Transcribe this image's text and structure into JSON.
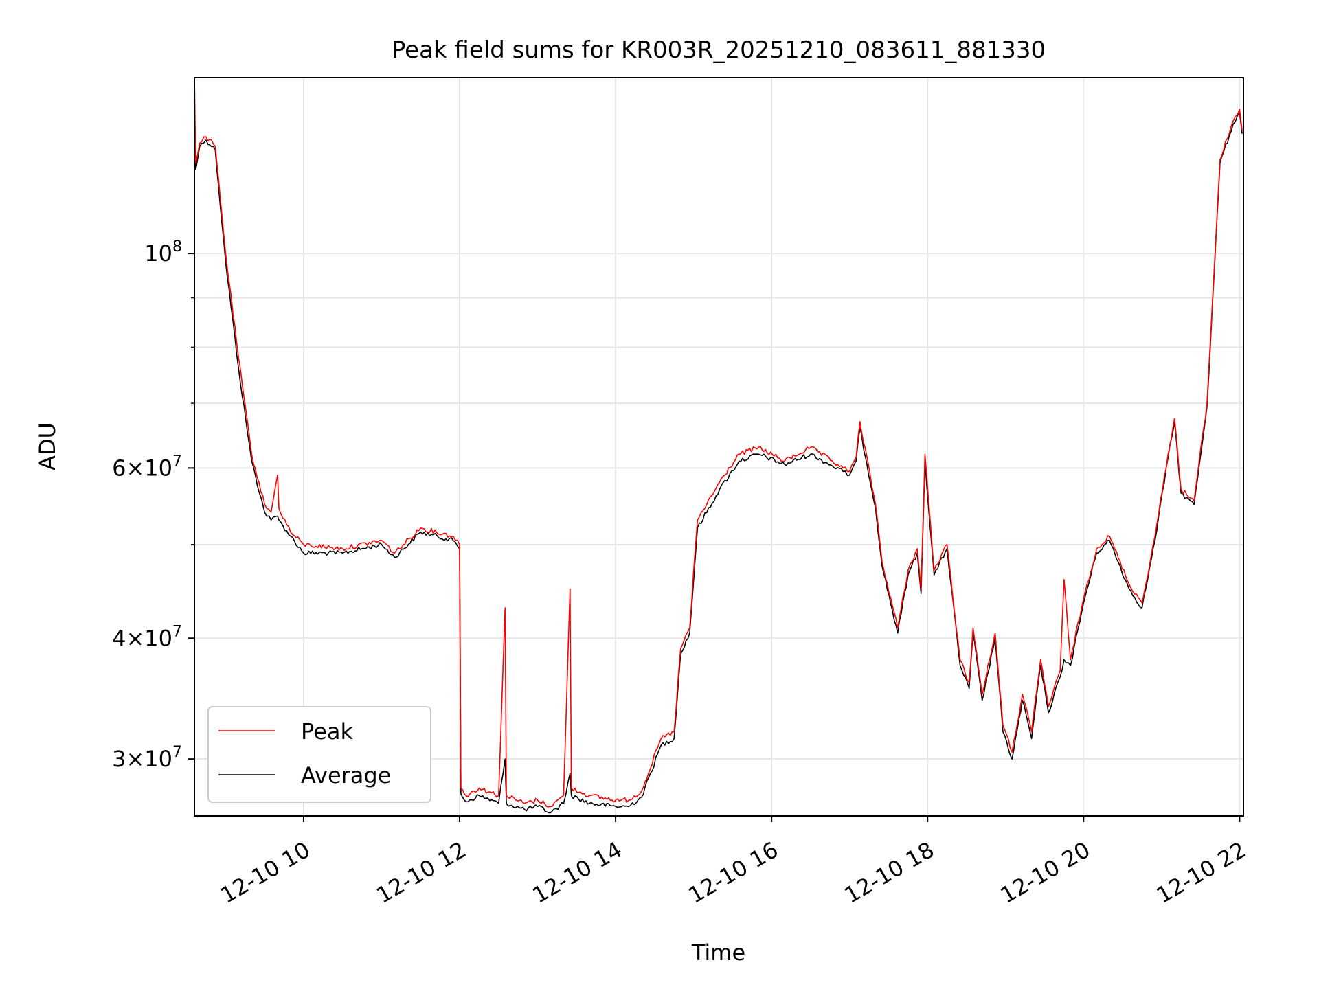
{
  "chart_data": {
    "type": "line",
    "title": "Peak field sums for KR003R_20251210_083611_881330",
    "xlabel": "Time",
    "ylabel": "ADU",
    "x_axis": {
      "type": "time",
      "start": "2025-12-10 08:36",
      "end": "2025-12-10 22:03"
    },
    "y_axis": {
      "scale": "log",
      "ylim": [
        26200000,
        152000000
      ]
    },
    "grid": true,
    "legend": {
      "position": "lower-left",
      "entries": [
        "Peak",
        "Average"
      ]
    },
    "x_ticks": [
      {
        "t": "10:00",
        "label": "12-10 10"
      },
      {
        "t": "12:00",
        "label": "12-10 12"
      },
      {
        "t": "14:00",
        "label": "12-10 14"
      },
      {
        "t": "16:00",
        "label": "12-10 16"
      },
      {
        "t": "18:00",
        "label": "12-10 18"
      },
      {
        "t": "20:00",
        "label": "12-10 20"
      },
      {
        "t": "22:00",
        "label": "12-10 22"
      }
    ],
    "y_ticks": [
      {
        "value": 30000000,
        "mant": "3",
        "exp": "7"
      },
      {
        "value": 40000000,
        "mant": "4",
        "exp": "7"
      },
      {
        "value": 60000000,
        "mant": "6",
        "exp": "7"
      },
      {
        "value": 100000000,
        "mant": "",
        "exp": "8"
      }
    ],
    "y_minor_ticks": [
      50000000,
      70000000,
      80000000,
      90000000
    ],
    "series": [
      {
        "name": "Peak",
        "color": "#ff0000",
        "points": [
          [
            "08:36",
            152000000
          ],
          [
            "08:37",
            124000000
          ],
          [
            "08:40",
            130000000
          ],
          [
            "08:45",
            132000000
          ],
          [
            "08:52",
            129000000
          ],
          [
            "09:00",
            100000000
          ],
          [
            "09:10",
            78000000
          ],
          [
            "09:20",
            62000000
          ],
          [
            "09:30",
            55000000
          ],
          [
            "09:35",
            54000000
          ],
          [
            "09:40",
            59000000
          ],
          [
            "09:41",
            54500000
          ],
          [
            "09:50",
            51500000
          ],
          [
            "10:00",
            50000000
          ],
          [
            "10:30",
            49500000
          ],
          [
            "11:00",
            50500000
          ],
          [
            "11:10",
            49000000
          ],
          [
            "11:30",
            52000000
          ],
          [
            "11:55",
            51000000
          ],
          [
            "12:00",
            50000000
          ],
          [
            "12:01",
            28000000
          ],
          [
            "12:05",
            27500000
          ],
          [
            "12:15",
            28000000
          ],
          [
            "12:30",
            27500000
          ],
          [
            "12:35",
            43000000
          ],
          [
            "12:36",
            27500000
          ],
          [
            "12:50",
            27000000
          ],
          [
            "13:00",
            27200000
          ],
          [
            "13:10",
            26800000
          ],
          [
            "13:20",
            27500000
          ],
          [
            "13:25",
            45000000
          ],
          [
            "13:26",
            28000000
          ],
          [
            "13:40",
            27500000
          ],
          [
            "14:00",
            27200000
          ],
          [
            "14:10",
            27200000
          ],
          [
            "14:20",
            27800000
          ],
          [
            "14:35",
            31500000
          ],
          [
            "14:45",
            32000000
          ],
          [
            "14:50",
            39000000
          ],
          [
            "14:57",
            41000000
          ],
          [
            "15:03",
            53000000
          ],
          [
            "15:20",
            58000000
          ],
          [
            "15:35",
            62000000
          ],
          [
            "15:50",
            63000000
          ],
          [
            "16:10",
            61000000
          ],
          [
            "16:30",
            63000000
          ],
          [
            "16:55",
            60000000
          ],
          [
            "17:00",
            59500000
          ],
          [
            "17:05",
            61500000
          ],
          [
            "17:08",
            67000000
          ],
          [
            "17:20",
            55000000
          ],
          [
            "17:25",
            48000000
          ],
          [
            "17:37",
            41000000
          ],
          [
            "17:45",
            47000000
          ],
          [
            "17:52",
            49500000
          ],
          [
            "17:55",
            45000000
          ],
          [
            "17:58",
            62000000
          ],
          [
            "18:05",
            47000000
          ],
          [
            "18:15",
            50000000
          ],
          [
            "18:25",
            38000000
          ],
          [
            "18:32",
            36000000
          ],
          [
            "18:35",
            41000000
          ],
          [
            "18:42",
            35000000
          ],
          [
            "18:52",
            40500000
          ],
          [
            "18:58",
            32500000
          ],
          [
            "19:05",
            30500000
          ],
          [
            "19:13",
            35000000
          ],
          [
            "19:20",
            32000000
          ],
          [
            "19:27",
            38000000
          ],
          [
            "19:33",
            34000000
          ],
          [
            "19:42",
            37000000
          ],
          [
            "19:45",
            46000000
          ],
          [
            "19:50",
            38000000
          ],
          [
            "20:00",
            44000000
          ],
          [
            "20:10",
            49500000
          ],
          [
            "20:20",
            51000000
          ],
          [
            "20:35",
            45500000
          ],
          [
            "20:45",
            43500000
          ],
          [
            "20:55",
            51000000
          ],
          [
            "21:05",
            62000000
          ],
          [
            "21:10",
            67500000
          ],
          [
            "21:15",
            57000000
          ],
          [
            "21:25",
            55500000
          ],
          [
            "21:35",
            70000000
          ],
          [
            "21:45",
            125000000
          ],
          [
            "21:55",
            137000000
          ],
          [
            "22:00",
            141000000
          ],
          [
            "22:02",
            134000000
          ]
        ]
      },
      {
        "name": "Average",
        "color": "#000000",
        "points": [
          [
            "08:36",
            136000000
          ],
          [
            "08:37",
            122000000
          ],
          [
            "08:40",
            129000000
          ],
          [
            "08:45",
            131000000
          ],
          [
            "08:52",
            128000000
          ],
          [
            "09:00",
            98000000
          ],
          [
            "09:10",
            76000000
          ],
          [
            "09:20",
            61000000
          ],
          [
            "09:30",
            54000000
          ],
          [
            "09:35",
            53000000
          ],
          [
            "09:40",
            53500000
          ],
          [
            "09:41",
            53000000
          ],
          [
            "09:50",
            51000000
          ],
          [
            "10:00",
            49000000
          ],
          [
            "10:30",
            49000000
          ],
          [
            "11:00",
            50000000
          ],
          [
            "11:10",
            48500000
          ],
          [
            "11:30",
            51500000
          ],
          [
            "11:55",
            50500000
          ],
          [
            "12:00",
            49500000
          ],
          [
            "12:01",
            27600000
          ],
          [
            "12:05",
            27100000
          ],
          [
            "12:15",
            27500000
          ],
          [
            "12:30",
            27000000
          ],
          [
            "12:35",
            30000000
          ],
          [
            "12:36",
            27000000
          ],
          [
            "12:50",
            26600000
          ],
          [
            "13:00",
            26800000
          ],
          [
            "13:10",
            26400000
          ],
          [
            "13:20",
            27000000
          ],
          [
            "13:25",
            29000000
          ],
          [
            "13:26",
            27500000
          ],
          [
            "13:40",
            27000000
          ],
          [
            "14:00",
            26800000
          ],
          [
            "14:10",
            26800000
          ],
          [
            "14:20",
            27400000
          ],
          [
            "14:35",
            31000000
          ],
          [
            "14:45",
            31500000
          ],
          [
            "14:50",
            38500000
          ],
          [
            "14:57",
            40500000
          ],
          [
            "15:03",
            52000000
          ],
          [
            "15:20",
            57000000
          ],
          [
            "15:35",
            61000000
          ],
          [
            "15:50",
            62000000
          ],
          [
            "16:10",
            60500000
          ],
          [
            "16:30",
            62000000
          ],
          [
            "16:55",
            59500000
          ],
          [
            "17:00",
            59000000
          ],
          [
            "17:05",
            61000000
          ],
          [
            "17:08",
            66000000
          ],
          [
            "17:20",
            54500000
          ],
          [
            "17:25",
            47500000
          ],
          [
            "17:37",
            40500000
          ],
          [
            "17:45",
            46500000
          ],
          [
            "17:52",
            49000000
          ],
          [
            "17:55",
            44500000
          ],
          [
            "17:58",
            61000000
          ],
          [
            "18:05",
            46500000
          ],
          [
            "18:15",
            49500000
          ],
          [
            "18:25",
            37500000
          ],
          [
            "18:32",
            35500000
          ],
          [
            "18:35",
            40500000
          ],
          [
            "18:42",
            34500000
          ],
          [
            "18:52",
            40000000
          ],
          [
            "18:58",
            32000000
          ],
          [
            "19:05",
            30000000
          ],
          [
            "19:13",
            34500000
          ],
          [
            "19:20",
            31500000
          ],
          [
            "19:27",
            37500000
          ],
          [
            "19:33",
            33500000
          ],
          [
            "19:42",
            36500000
          ],
          [
            "19:45",
            38000000
          ],
          [
            "19:50",
            37500000
          ],
          [
            "20:00",
            43500000
          ],
          [
            "20:10",
            49000000
          ],
          [
            "20:20",
            50500000
          ],
          [
            "20:35",
            45000000
          ],
          [
            "20:45",
            43000000
          ],
          [
            "20:55",
            50500000
          ],
          [
            "21:05",
            61500000
          ],
          [
            "21:10",
            67000000
          ],
          [
            "21:15",
            56500000
          ],
          [
            "21:25",
            55000000
          ],
          [
            "21:35",
            69500000
          ],
          [
            "21:45",
            124000000
          ],
          [
            "21:55",
            136000000
          ],
          [
            "22:00",
            140000000
          ],
          [
            "22:02",
            133000000
          ]
        ]
      }
    ]
  }
}
